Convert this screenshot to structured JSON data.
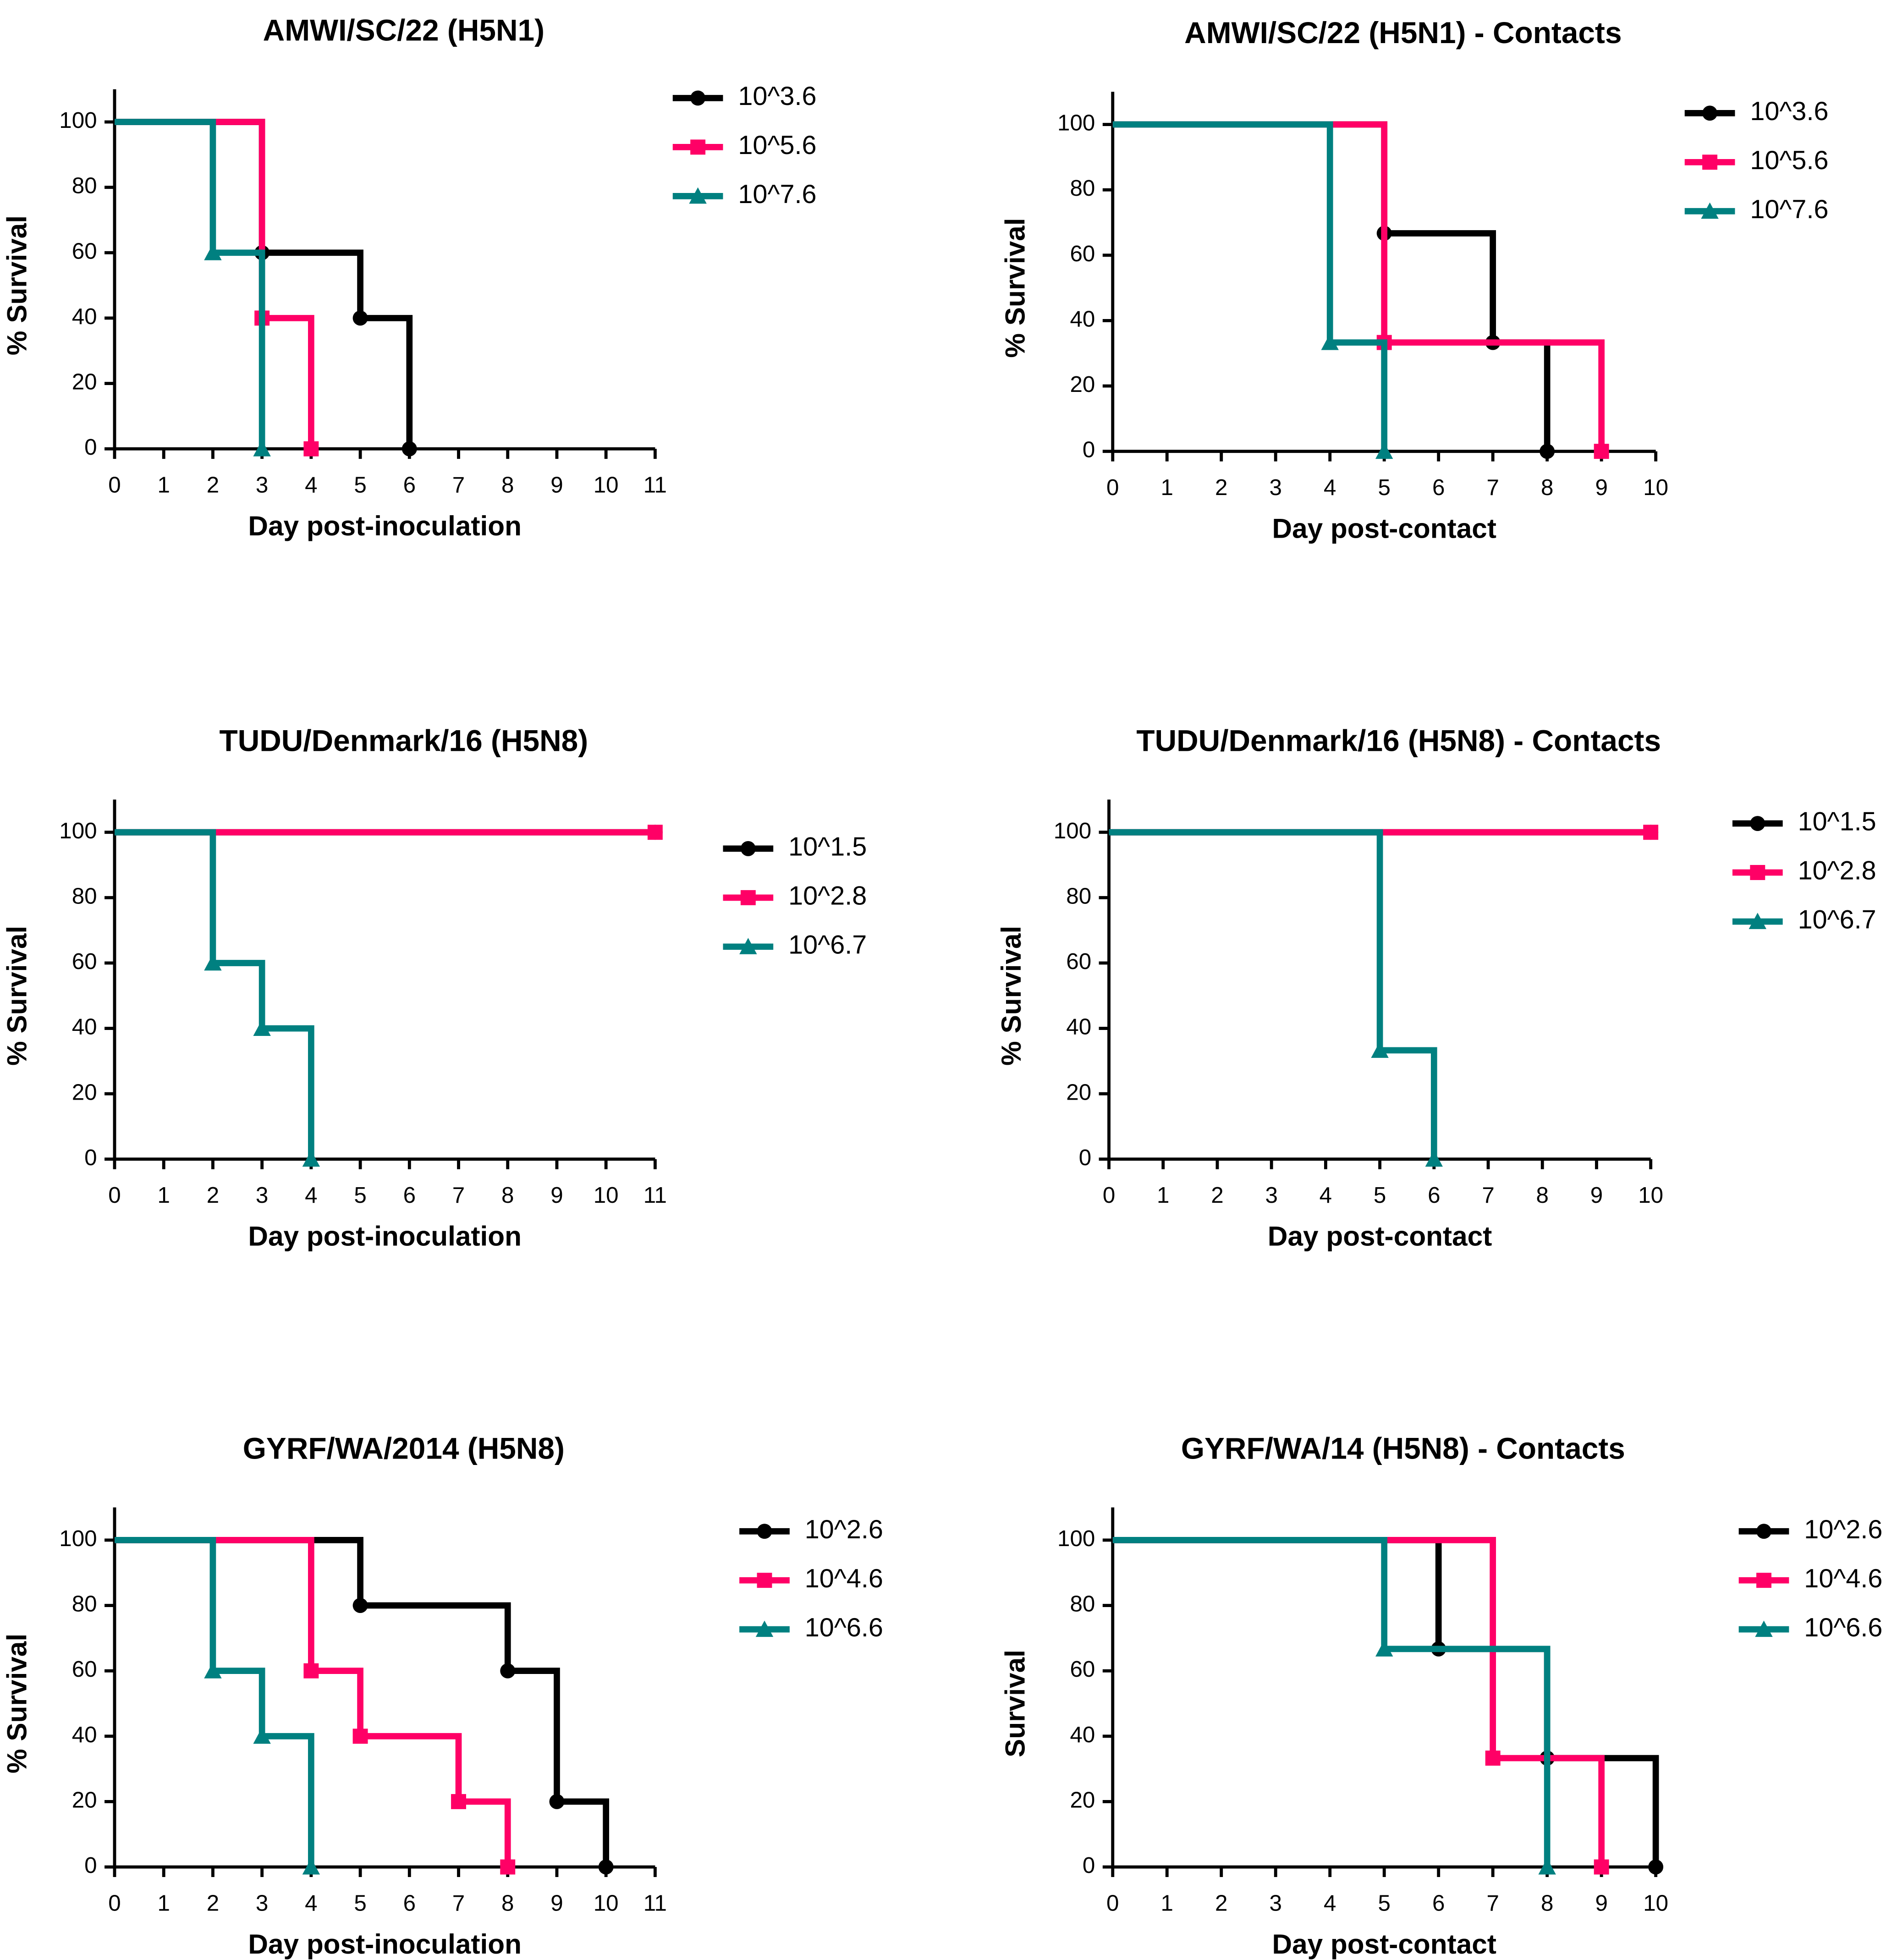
{
  "chart_data": [
    {
      "type": "step",
      "title": "AMWI/SC/22 (H5N1)",
      "x_label": "Day post-inoculation",
      "y_label": "% Survival",
      "xlim": [
        0,
        11
      ],
      "xticks": [
        0,
        1,
        2,
        3,
        4,
        5,
        6,
        7,
        8,
        9,
        10,
        11
      ],
      "ylim": [
        0,
        110
      ],
      "yticks": [
        0,
        20,
        40,
        60,
        80,
        100
      ],
      "series": [
        {
          "name": "10^3.6",
          "color": "#000000",
          "marker": "circle",
          "x": [
            0,
            3,
            5,
            6
          ],
          "values": [
            100,
            60,
            40,
            0
          ]
        },
        {
          "name": "10^5.6",
          "color": "#ff0066",
          "marker": "square",
          "x": [
            0,
            3,
            4
          ],
          "values": [
            100,
            40,
            0
          ]
        },
        {
          "name": "10^7.6",
          "color": "#008080",
          "marker": "triangle",
          "x": [
            0,
            2,
            3
          ],
          "values": [
            100,
            60,
            0
          ]
        }
      ]
    },
    {
      "type": "step",
      "title": "AMWI/SC/22 (H5N1) - Contacts",
      "x_label": "Day post-contact",
      "y_label": "% Survival",
      "xlim": [
        0,
        10
      ],
      "xticks": [
        0,
        1,
        2,
        3,
        4,
        5,
        6,
        7,
        8,
        9,
        10
      ],
      "ylim": [
        0,
        110
      ],
      "yticks": [
        0,
        20,
        40,
        60,
        80,
        100
      ],
      "series": [
        {
          "name": "10^3.6",
          "color": "#000000",
          "marker": "circle",
          "x": [
            0,
            5,
            7,
            8
          ],
          "values": [
            100,
            66.7,
            33.3,
            0
          ]
        },
        {
          "name": "10^5.6",
          "color": "#ff0066",
          "marker": "square",
          "x": [
            0,
            5,
            9
          ],
          "values": [
            100,
            33.3,
            0
          ]
        },
        {
          "name": "10^7.6",
          "color": "#008080",
          "marker": "triangle",
          "x": [
            0,
            4,
            5
          ],
          "values": [
            100,
            33.3,
            0
          ]
        }
      ]
    },
    {
      "type": "step",
      "title": "TUDU/Denmark/16 (H5N8)",
      "x_label": "Day post-inoculation",
      "y_label": "% Survival",
      "xlim": [
        0,
        11
      ],
      "xticks": [
        0,
        1,
        2,
        3,
        4,
        5,
        6,
        7,
        8,
        9,
        10,
        11
      ],
      "ylim": [
        0,
        110
      ],
      "yticks": [
        0,
        20,
        40,
        60,
        80,
        100
      ],
      "series": [
        {
          "name": "10^1.5",
          "color": "#000000",
          "marker": "circle",
          "x": [
            0,
            11
          ],
          "values": [
            100,
            100
          ]
        },
        {
          "name": "10^2.8",
          "color": "#ff0066",
          "marker": "square",
          "x": [
            0,
            11
          ],
          "values": [
            100,
            100
          ]
        },
        {
          "name": "10^6.7",
          "color": "#008080",
          "marker": "triangle",
          "x": [
            0,
            2,
            3,
            4
          ],
          "values": [
            100,
            60,
            40,
            0
          ]
        }
      ]
    },
    {
      "type": "step",
      "title": "TUDU/Denmark/16 (H5N8) - Contacts",
      "x_label": "Day post-contact",
      "y_label": "% Survival",
      "xlim": [
        0,
        10
      ],
      "xticks": [
        0,
        1,
        2,
        3,
        4,
        5,
        6,
        7,
        8,
        9,
        10
      ],
      "ylim": [
        0,
        110
      ],
      "yticks": [
        0,
        20,
        40,
        60,
        80,
        100
      ],
      "series": [
        {
          "name": "10^1.5",
          "color": "#000000",
          "marker": "circle",
          "x": [
            0,
            10
          ],
          "values": [
            100,
            100
          ]
        },
        {
          "name": "10^2.8",
          "color": "#ff0066",
          "marker": "square",
          "x": [
            0,
            10
          ],
          "values": [
            100,
            100
          ]
        },
        {
          "name": "10^6.7",
          "color": "#008080",
          "marker": "triangle",
          "x": [
            0,
            5,
            6
          ],
          "values": [
            100,
            33.3,
            0
          ]
        }
      ]
    },
    {
      "type": "step",
      "title": "GYRF/WA/2014 (H5N8)",
      "x_label": "Day post-inoculation",
      "y_label": "% Survival",
      "xlim": [
        0,
        11
      ],
      "xticks": [
        0,
        1,
        2,
        3,
        4,
        5,
        6,
        7,
        8,
        9,
        10,
        11
      ],
      "ylim": [
        0,
        110
      ],
      "yticks": [
        0,
        20,
        40,
        60,
        80,
        100
      ],
      "series": [
        {
          "name": "10^2.6",
          "color": "#000000",
          "marker": "circle",
          "x": [
            0,
            5,
            8,
            9,
            10
          ],
          "values": [
            100,
            80,
            60,
            20,
            0
          ]
        },
        {
          "name": "10^4.6",
          "color": "#ff0066",
          "marker": "square",
          "x": [
            0,
            4,
            5,
            7,
            8
          ],
          "values": [
            100,
            60,
            40,
            20,
            0
          ]
        },
        {
          "name": "10^6.6",
          "color": "#008080",
          "marker": "triangle",
          "x": [
            0,
            2,
            3,
            4
          ],
          "values": [
            100,
            60,
            40,
            0
          ]
        }
      ]
    },
    {
      "type": "step",
      "title": "GYRF/WA/14 (H5N8) - Contacts",
      "x_label": "Day post-contact",
      "y_label": "Survival",
      "xlim": [
        0,
        10
      ],
      "xticks": [
        0,
        1,
        2,
        3,
        4,
        5,
        6,
        7,
        8,
        9,
        10
      ],
      "ylim": [
        0,
        110
      ],
      "yticks": [
        0,
        20,
        40,
        60,
        80,
        100
      ],
      "series": [
        {
          "name": "10^2.6",
          "color": "#000000",
          "marker": "circle",
          "x": [
            0,
            6,
            8,
            10
          ],
          "values": [
            100,
            66.7,
            33.3,
            0
          ]
        },
        {
          "name": "10^4.6",
          "color": "#ff0066",
          "marker": "square",
          "x": [
            0,
            7,
            9
          ],
          "values": [
            100,
            33.3,
            0
          ]
        },
        {
          "name": "10^6.6",
          "color": "#008080",
          "marker": "triangle",
          "x": [
            0,
            5,
            8
          ],
          "values": [
            100,
            66.7,
            0
          ]
        }
      ]
    }
  ]
}
